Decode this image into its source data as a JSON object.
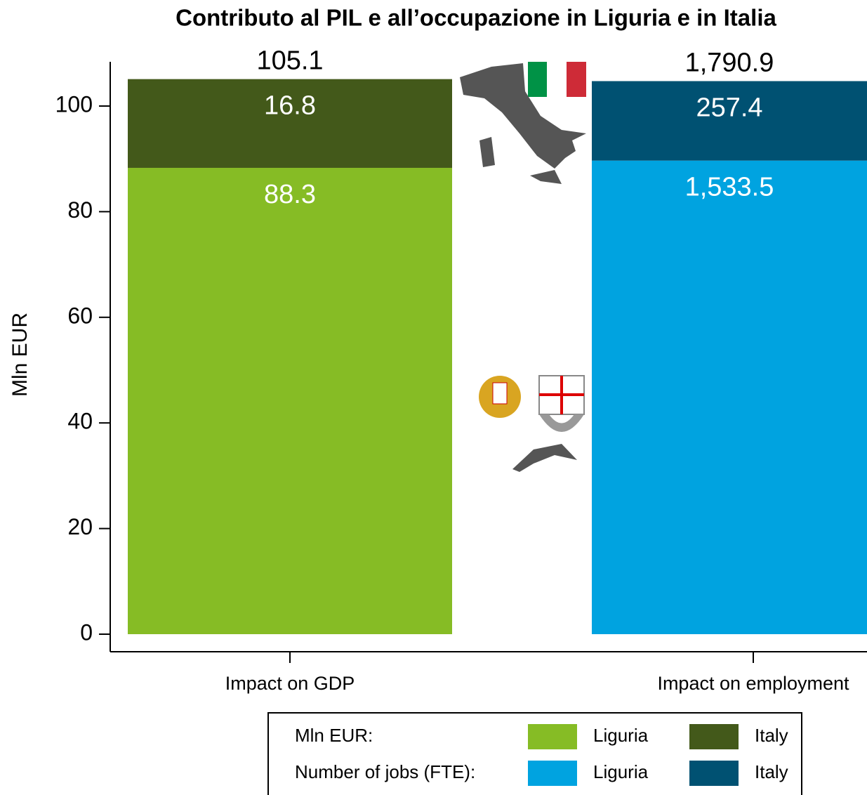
{
  "chart_data": {
    "type": "stacked_bar",
    "title": "Contributo al PIL e all’occupazione in Liguria e in Italia",
    "ylabel": "Mln EUR",
    "categories": [
      "Impact on GDP",
      "Impact on employment"
    ],
    "series": [
      {
        "name": "Liguria",
        "color": "#86bc25",
        "values": [
          88.3,
          null
        ]
      },
      {
        "name": "Italy",
        "color": "#43591a",
        "values": [
          16.8,
          null
        ]
      },
      {
        "name": "Liguria",
        "color": "#00a3e0",
        "axis": "y2",
        "values": [
          null,
          1533.5
        ],
        "value_labels": [
          null,
          "1,533.5"
        ]
      },
      {
        "name": "Italy",
        "color": "#005172",
        "axis": "y2",
        "values": [
          null,
          257.4
        ]
      }
    ],
    "totals": [
      105.1,
      1790.9
    ],
    "total_labels": [
      "105.1",
      "1,790.9"
    ],
    "legend_groups": [
      "Mln EUR:",
      "Number of jobs (FTE):"
    ],
    "ylim": [
      0,
      108
    ],
    "yticks": [
      0,
      20,
      40,
      60,
      80,
      100
    ],
    "y2lim": [
      0,
      1847
    ]
  }
}
